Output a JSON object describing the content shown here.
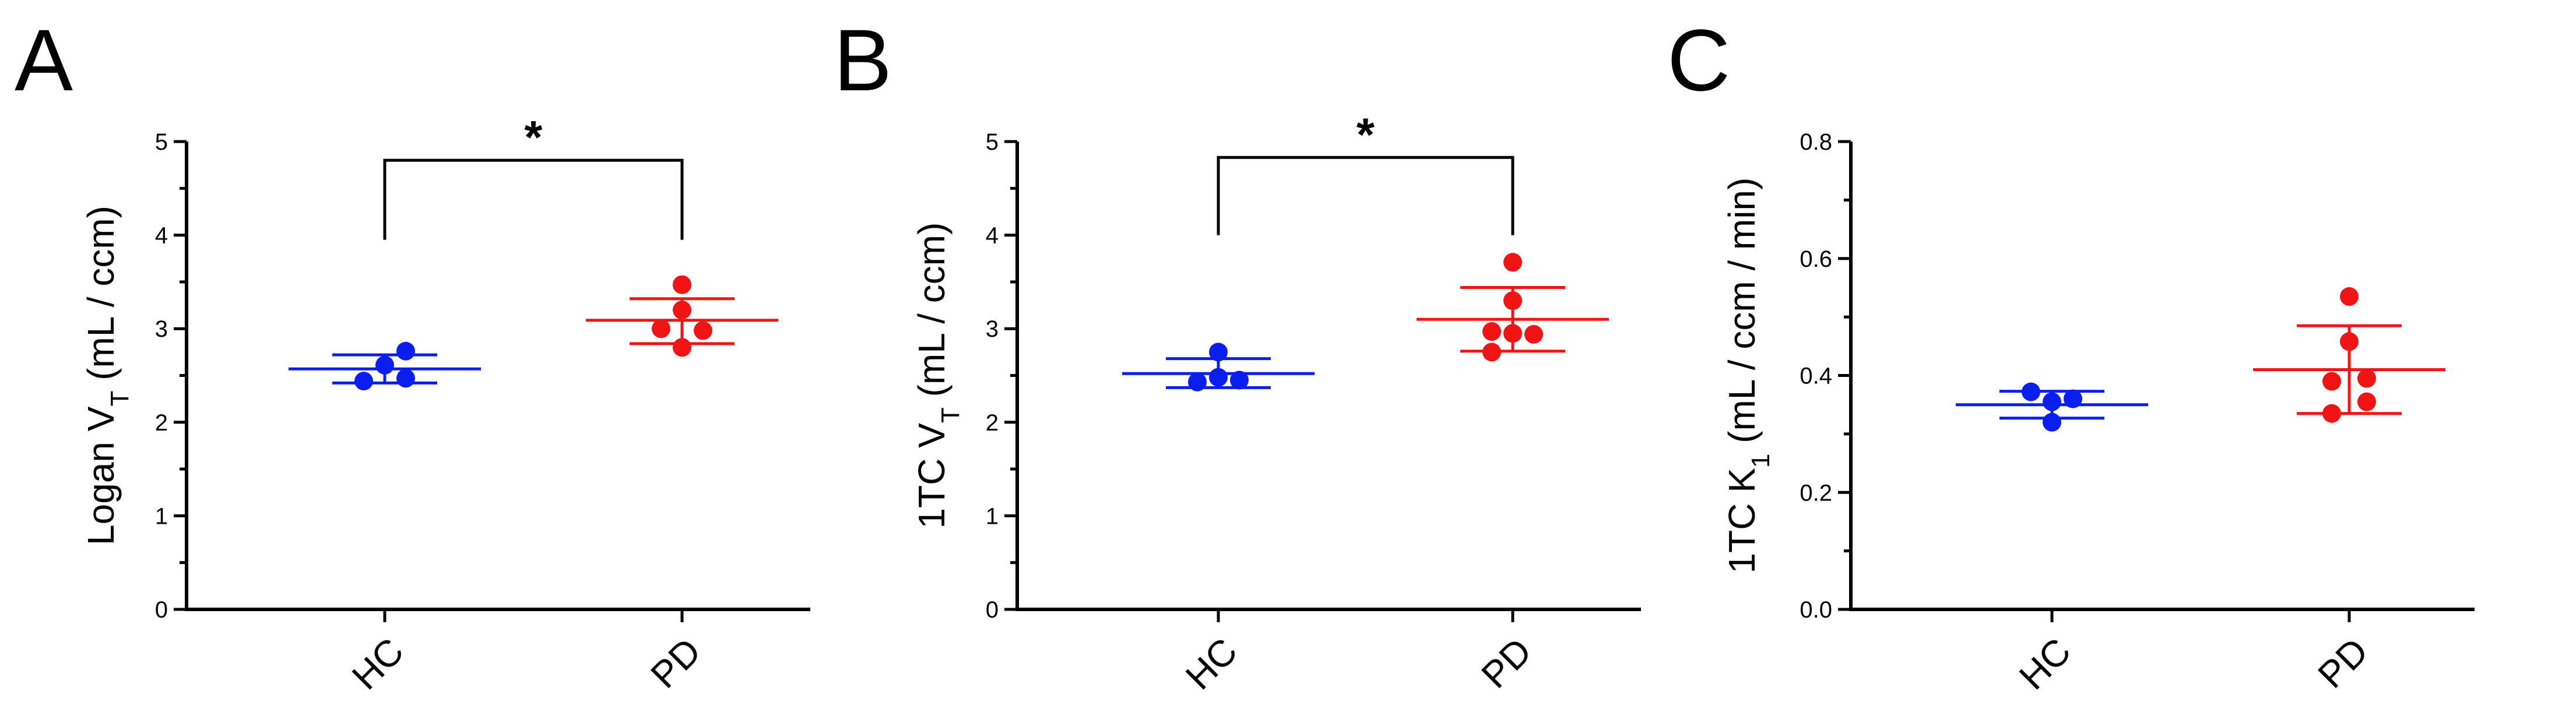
{
  "colors": {
    "HC": "#0a1ef0",
    "PD": "#f01414",
    "axis": "#000000"
  },
  "chart_data": [
    {
      "panel": "A",
      "type": "scatter",
      "ylabel_main": "Logan V",
      "ylabel_sub": "T",
      "ylabel_units": " (mL / ccm)",
      "ylim": [
        0,
        5
      ],
      "yticks": [
        0,
        1,
        2,
        3,
        4,
        5
      ],
      "ytick_labels": [
        "0",
        "1",
        "2",
        "3",
        "4",
        "5"
      ],
      "categories": [
        "HC",
        "PD"
      ],
      "series": [
        {
          "name": "HC",
          "color": "#0a1ef0",
          "mean": 2.57,
          "err_low": 2.42,
          "err_high": 2.72,
          "points": [
            {
              "dx": -0.12,
              "y": 2.44
            },
            {
              "dx": 0.0,
              "y": 2.61
            },
            {
              "dx": 0.12,
              "y": 2.76
            },
            {
              "dx": 0.12,
              "y": 2.47
            }
          ]
        },
        {
          "name": "PD",
          "color": "#f01414",
          "mean": 3.09,
          "err_low": 2.84,
          "err_high": 3.32,
          "points": [
            {
              "dx": 0.0,
              "y": 3.47
            },
            {
              "dx": -0.12,
              "y": 3.0
            },
            {
              "dx": 0.0,
              "y": 3.2
            },
            {
              "dx": 0.12,
              "y": 2.98
            },
            {
              "dx": 0.0,
              "y": 2.8
            }
          ]
        }
      ],
      "significance": {
        "label": "*",
        "y": 4.8,
        "drop_to": 3.95
      }
    },
    {
      "panel": "B",
      "type": "scatter",
      "ylabel_main": "1TC V",
      "ylabel_sub": "T",
      "ylabel_units": " (mL / ccm)",
      "ylim": [
        0,
        5
      ],
      "yticks": [
        0,
        1,
        2,
        3,
        4,
        5
      ],
      "ytick_labels": [
        "0",
        "1",
        "2",
        "3",
        "4",
        "5"
      ],
      "categories": [
        "HC",
        "PD"
      ],
      "series": [
        {
          "name": "HC",
          "color": "#0a1ef0",
          "mean": 2.52,
          "err_low": 2.37,
          "err_high": 2.68,
          "points": [
            {
              "dx": 0.0,
              "y": 2.75
            },
            {
              "dx": -0.12,
              "y": 2.43
            },
            {
              "dx": 0.0,
              "y": 2.48
            },
            {
              "dx": 0.12,
              "y": 2.45
            }
          ]
        },
        {
          "name": "PD",
          "color": "#f01414",
          "mean": 3.1,
          "err_low": 2.76,
          "err_high": 3.44,
          "points": [
            {
              "dx": 0.0,
              "y": 3.71
            },
            {
              "dx": 0.0,
              "y": 3.3
            },
            {
              "dx": -0.12,
              "y": 2.97
            },
            {
              "dx": 0.12,
              "y": 2.94
            },
            {
              "dx": -0.12,
              "y": 2.75
            },
            {
              "dx": 0.0,
              "y": 2.95
            }
          ]
        }
      ],
      "significance": {
        "label": "*",
        "y": 4.83,
        "drop_to": 4.0
      }
    },
    {
      "panel": "C",
      "type": "scatter",
      "ylabel_main": "1TC K",
      "ylabel_sub": "1",
      "ylabel_units": " (mL / ccm / min)",
      "ylim": [
        0,
        0.8
      ],
      "yticks": [
        0,
        0.2,
        0.4,
        0.6,
        0.8
      ],
      "ytick_labels": [
        "0.0",
        "0.2",
        "0.4",
        "0.6",
        "0.8"
      ],
      "categories": [
        "HC",
        "PD"
      ],
      "series": [
        {
          "name": "HC",
          "color": "#0a1ef0",
          "mean": 0.35,
          "err_low": 0.327,
          "err_high": 0.373,
          "points": [
            {
              "dx": -0.12,
              "y": 0.372
            },
            {
              "dx": 0.0,
              "y": 0.355
            },
            {
              "dx": 0.12,
              "y": 0.36
            },
            {
              "dx": 0.0,
              "y": 0.32
            }
          ]
        },
        {
          "name": "PD",
          "color": "#f01414",
          "mean": 0.41,
          "err_low": 0.335,
          "err_high": 0.485,
          "points": [
            {
              "dx": 0.0,
              "y": 0.535
            },
            {
              "dx": 0.0,
              "y": 0.458
            },
            {
              "dx": -0.1,
              "y": 0.39
            },
            {
              "dx": 0.1,
              "y": 0.395
            },
            {
              "dx": 0.1,
              "y": 0.355
            },
            {
              "dx": -0.1,
              "y": 0.335
            }
          ]
        }
      ]
    }
  ]
}
